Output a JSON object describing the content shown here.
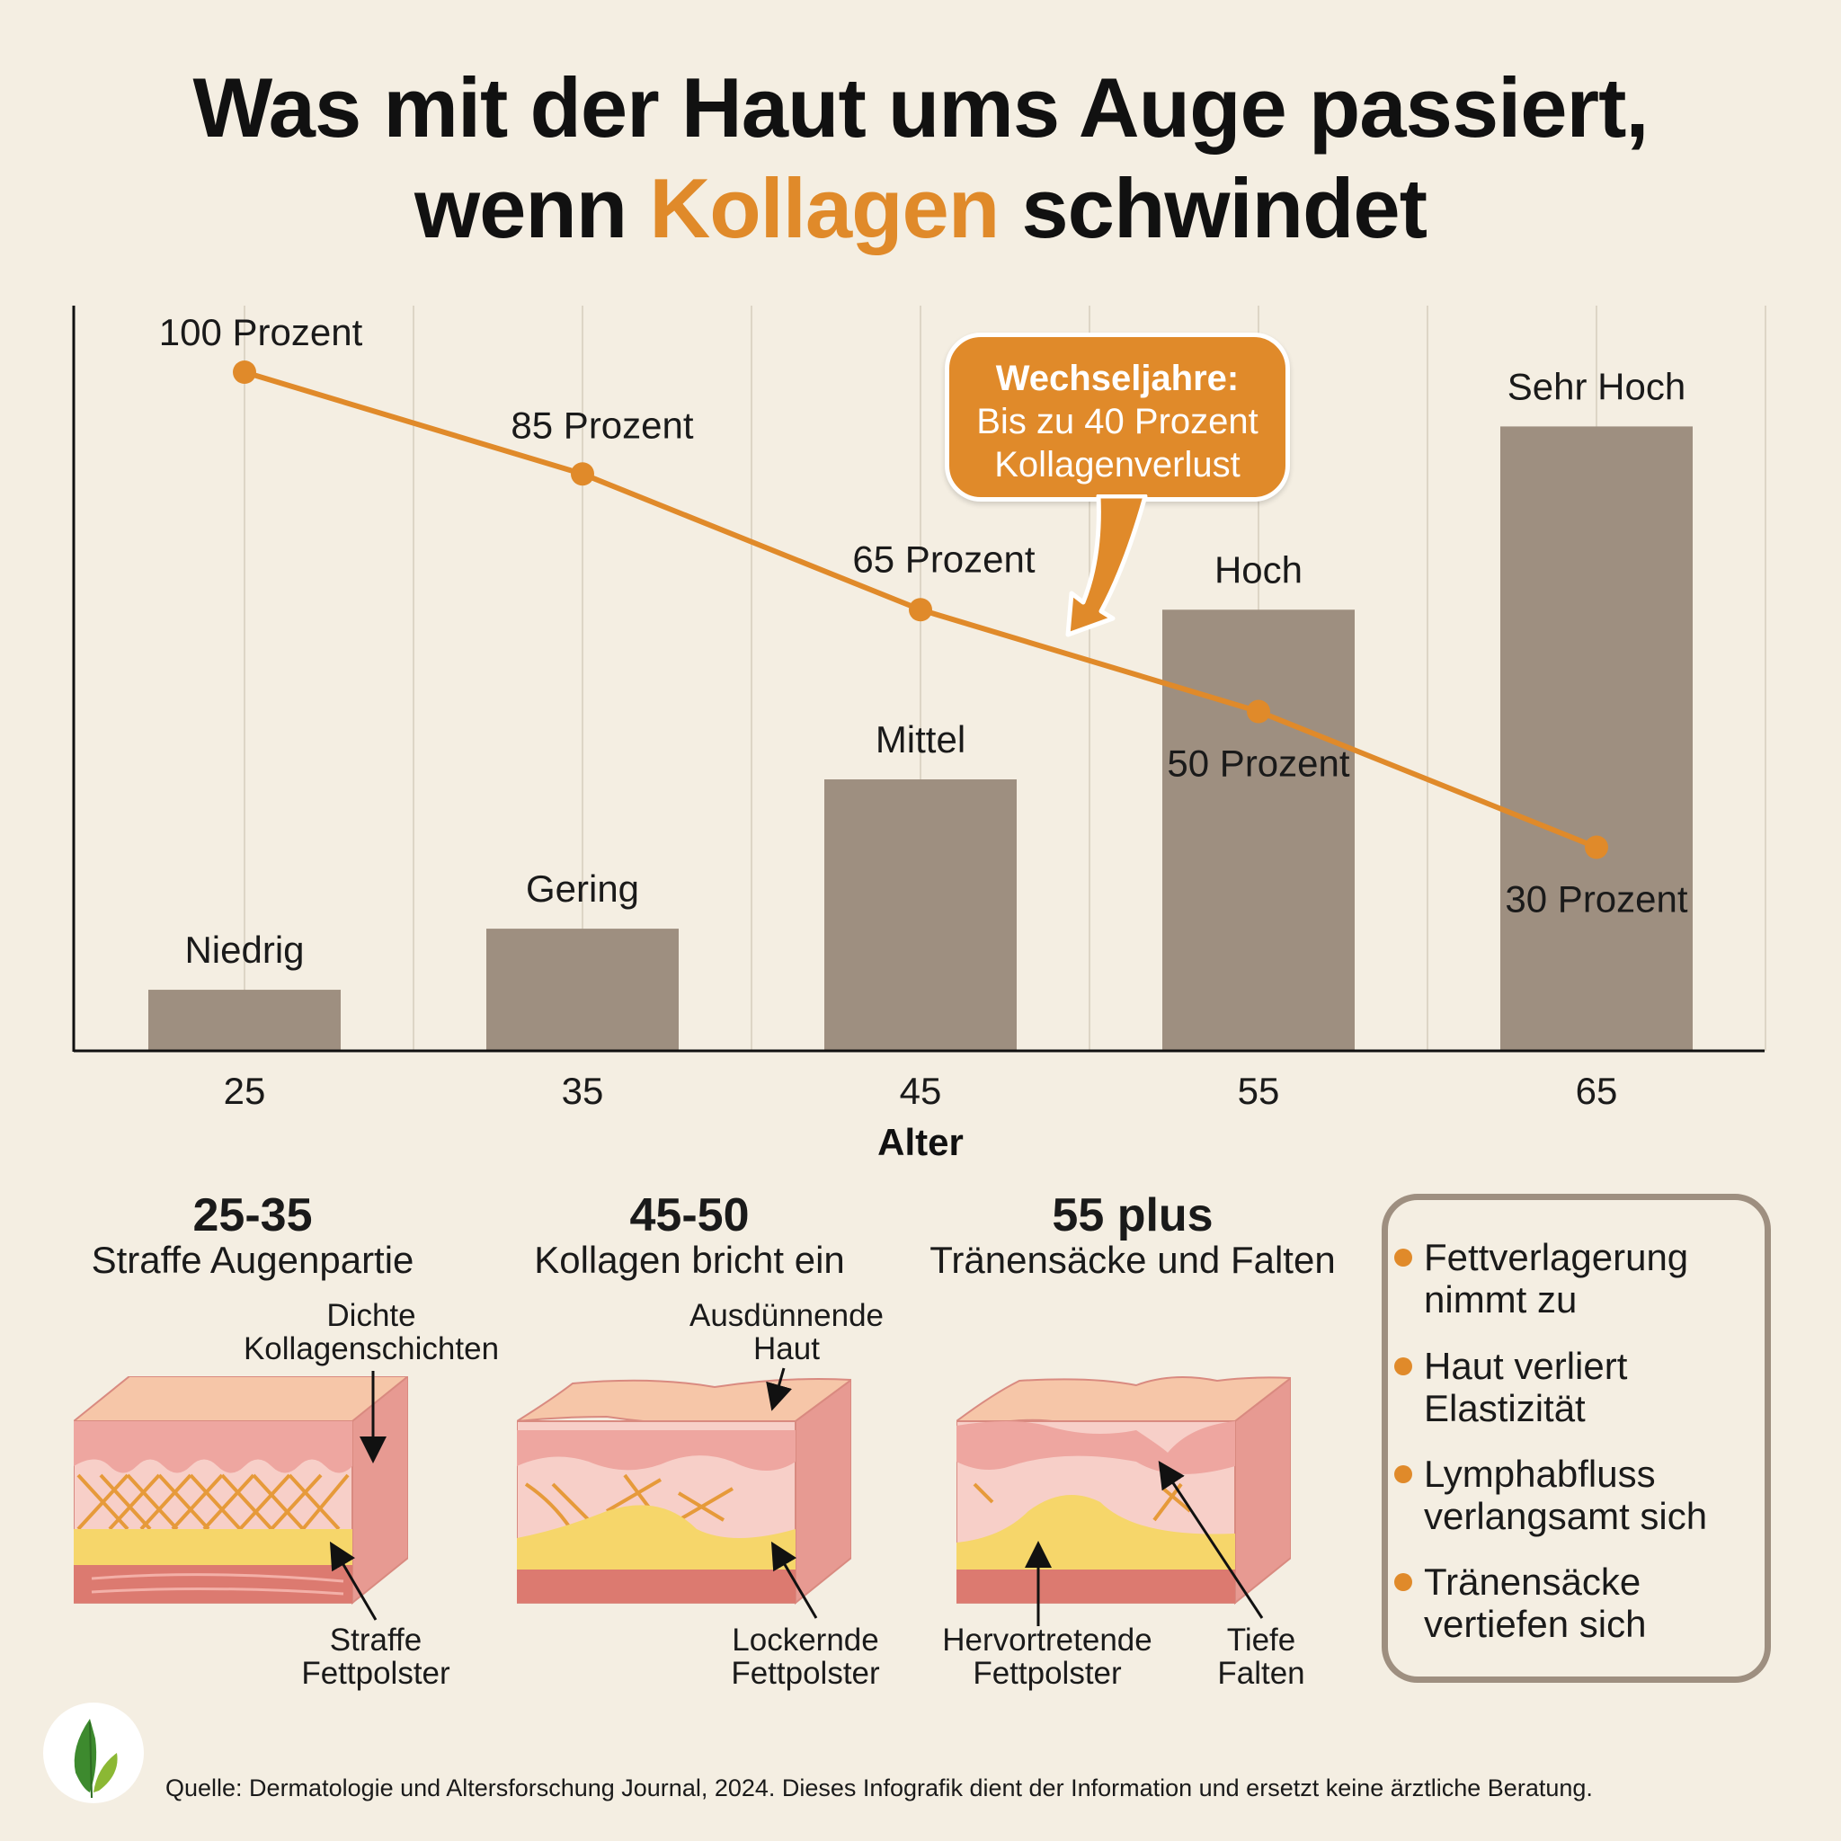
{
  "title": {
    "line1": "Was mit der Haut ums Auge passiert,",
    "line2_pre": "wenn ",
    "line2_accent": "Kollagen",
    "line2_post": " schwindet"
  },
  "colors": {
    "accent": "#e08a2a",
    "bar": "#9e8f80",
    "background": "#f4eee2"
  },
  "chart_data": {
    "type": "bar+line",
    "xlabel": "Alter",
    "categories": [
      "25",
      "35",
      "45",
      "55",
      "65"
    ],
    "line_series": {
      "values": [
        100,
        85,
        65,
        50,
        30
      ],
      "labels": [
        "100 Prozent",
        "85 Prozent",
        "65 Prozent",
        "50 Prozent",
        "30 Prozent"
      ],
      "color": "#e08a2a"
    },
    "bar_series": {
      "levels": [
        "Niedrig",
        "Gering",
        "Mittel",
        "Hoch",
        "Sehr Hoch"
      ],
      "values": [
        9,
        18,
        40,
        65,
        92
      ],
      "color": "#9e8f80"
    },
    "ylim": [
      0,
      100
    ],
    "grid": "vertical",
    "callout": {
      "title": "Wechseljahre:",
      "line1": "Bis zu 40 Prozent",
      "line2": "Kollagenverlust"
    }
  },
  "stages": [
    {
      "range": "25-35",
      "caption": "Straffe Augenpartie",
      "top_label": [
        "Dichte",
        "Kollagenschichten"
      ],
      "bottom_label": [
        "Straffe",
        "Fettpolster"
      ]
    },
    {
      "range": "45-50",
      "caption": "Kollagen bricht ein",
      "top_label": [
        "Ausdünnende",
        "Haut"
      ],
      "bottom_label": [
        "Lockernde",
        "Fettpolster"
      ]
    },
    {
      "range": "55 plus",
      "caption": "Tränensäcke und Falten",
      "bottom_label": [
        "Hervortretende",
        "Fettpolster"
      ],
      "bottom_label2": [
        "Tiefe",
        "Falten"
      ]
    }
  ],
  "effects": [
    [
      "Fettverlagerung",
      "nimmt zu"
    ],
    [
      "Haut verliert",
      "Elastizität"
    ],
    [
      "Lymphabfluss",
      "verlangsamt sich"
    ],
    [
      "Tränensäcke",
      "vertiefen sich"
    ]
  ],
  "footer": "Quelle: Dermatologie und Altersforschung Journal, 2024. Dieses Infografik dient der Information und ersetzt keine ärztliche Beratung.",
  "logo": {
    "icon": "leaf-icon"
  }
}
